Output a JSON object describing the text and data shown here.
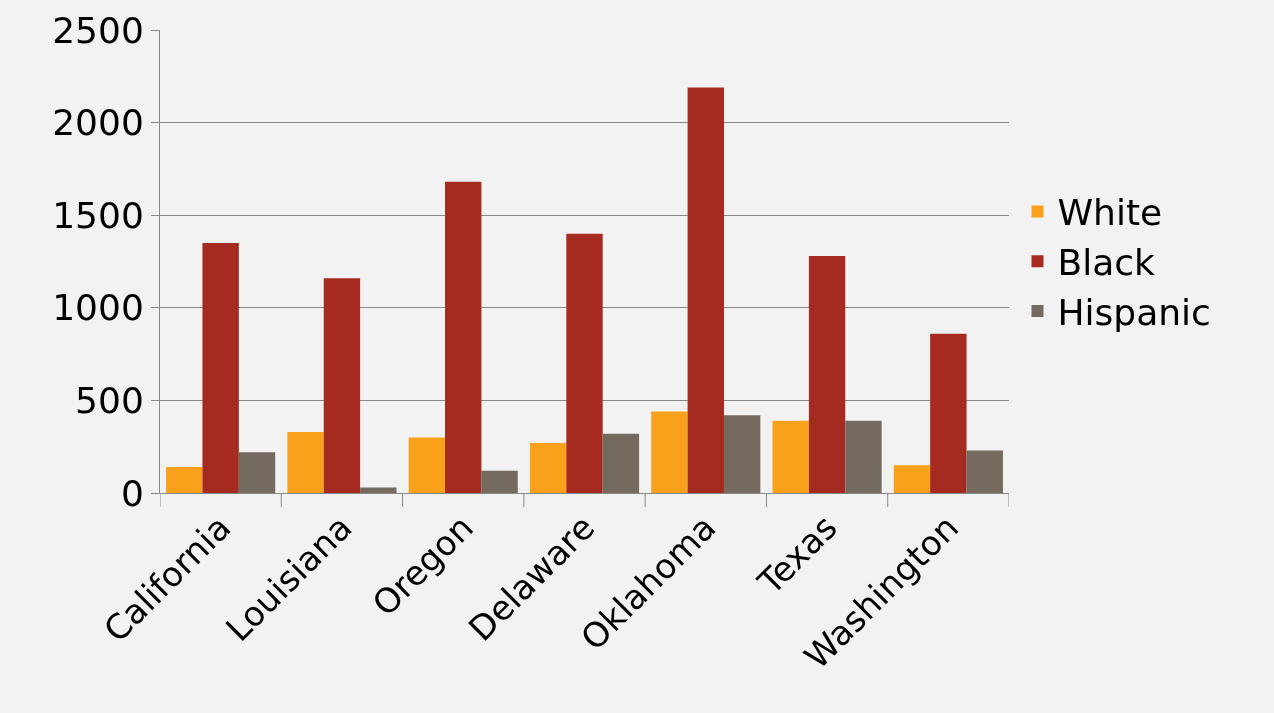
{
  "chart_data": {
    "type": "bar",
    "categories": [
      "California",
      "Louisiana",
      "Oregon",
      "Delaware",
      "Oklahoma",
      "Texas",
      "Washington"
    ],
    "series": [
      {
        "name": "White",
        "color": "#f9a11b",
        "values": [
          140,
          330,
          300,
          270,
          440,
          390,
          150
        ]
      },
      {
        "name": "Black",
        "color": "#a52a1f",
        "values": [
          1350,
          1160,
          1680,
          1400,
          2190,
          1280,
          860
        ]
      },
      {
        "name": "Hispanic",
        "color": "#746a5d",
        "values": [
          220,
          30,
          120,
          320,
          420,
          390,
          230
        ]
      }
    ],
    "ylim": [
      0,
      2500
    ],
    "yticks": [
      0,
      500,
      1000,
      1500,
      2000,
      2500
    ],
    "grid": "y",
    "legend": "right"
  }
}
